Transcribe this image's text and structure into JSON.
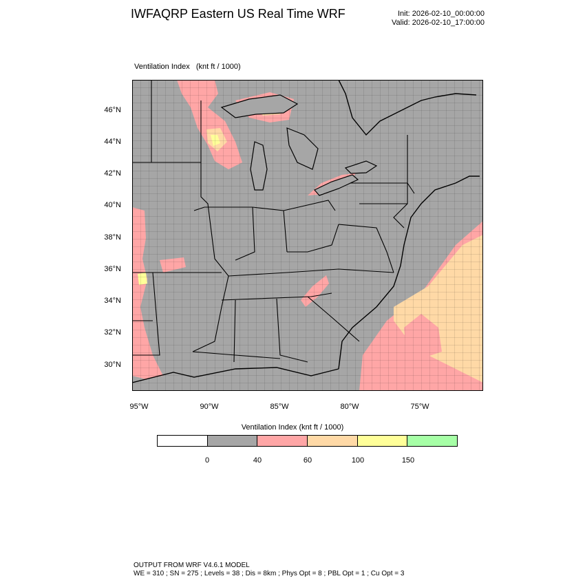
{
  "header": {
    "title": "IWFAQRP Eastern US Real Time WRF",
    "init": "Init: 2026-02-10_00:00:00",
    "valid": "Valid: 2026-02-10_17:00:00"
  },
  "plot": {
    "label": "Ventilation Index   (knt ft / 1000)"
  },
  "map": {
    "lat_labels": [
      "46°N",
      "44°N",
      "42°N",
      "40°N",
      "38°N",
      "36°N",
      "34°N",
      "32°N",
      "30°N"
    ],
    "lon_labels": [
      "95°W",
      "90°W",
      "85°W",
      "80°W",
      "75°W"
    ],
    "colors": {
      "background": "#a6a6a6",
      "low": "#ffa6a6",
      "mid": "#ffd9a6",
      "high": "#ffff99"
    }
  },
  "legend": {
    "title": "Ventilation Index  (knt ft / 1000)",
    "colors": [
      "#ffffff",
      "#a6a6a6",
      "#ffa6a6",
      "#ffd9a6",
      "#ffff99",
      "#a6ffa6"
    ],
    "ticks": [
      "0",
      "40",
      "60",
      "100",
      "150"
    ]
  },
  "footer": {
    "line1": "OUTPUT FROM WRF V4.6.1 MODEL",
    "line2": "WE = 310 ; SN = 275 ; Levels = 38 ; Dis = 8km ; Phys Opt = 8 ; PBL Opt = 1 ; Cu Opt = 3"
  }
}
